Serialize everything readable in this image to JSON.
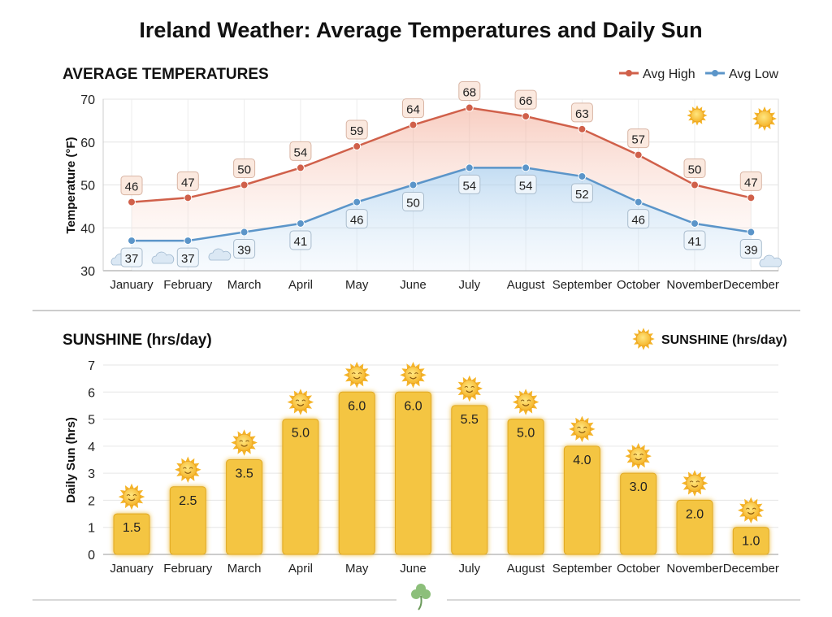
{
  "title": "Ireland Weather: Average Temperatures and Daily Sun",
  "colors": {
    "high": "#d0604a",
    "low": "#5b95c9",
    "bar": "#f4c542",
    "sun": "#f7b733"
  },
  "chart_data": [
    {
      "type": "line",
      "title": "AVERAGE TEMPERATURES",
      "ylabel": "Temperature (°F)",
      "xlabel": "",
      "categories": [
        "January",
        "February",
        "March",
        "April",
        "May",
        "June",
        "July",
        "August",
        "September",
        "October",
        "November",
        "December"
      ],
      "ylim": [
        30,
        70
      ],
      "yticks": [
        30,
        40,
        50,
        60,
        70
      ],
      "grid": true,
      "legend": "top-right",
      "series": [
        {
          "name": "Avg High",
          "values": [
            46,
            47,
            50,
            54,
            59,
            64,
            68,
            66,
            63,
            57,
            50,
            47
          ]
        },
        {
          "name": "Avg Low",
          "values": [
            37,
            37,
            39,
            41,
            46,
            50,
            54,
            54,
            52,
            46,
            41,
            39
          ]
        }
      ]
    },
    {
      "type": "bar",
      "title": "SUNSHINE (hrs/day)",
      "ylabel": "Daily Sun (hrs)",
      "xlabel": "",
      "categories": [
        "January",
        "February",
        "March",
        "April",
        "May",
        "June",
        "July",
        "August",
        "September",
        "October",
        "November",
        "December"
      ],
      "ylim": [
        0,
        7
      ],
      "yticks": [
        0,
        1,
        2,
        3,
        4,
        5,
        6,
        7
      ],
      "grid": true,
      "legend": "top-right",
      "series": [
        {
          "name": "SUNSHINE (hrs/day)",
          "values": [
            1.5,
            2.5,
            3.5,
            5.0,
            6.0,
            6.0,
            5.5,
            5.0,
            4.0,
            3.0,
            2.0,
            1.0
          ]
        }
      ]
    }
  ]
}
